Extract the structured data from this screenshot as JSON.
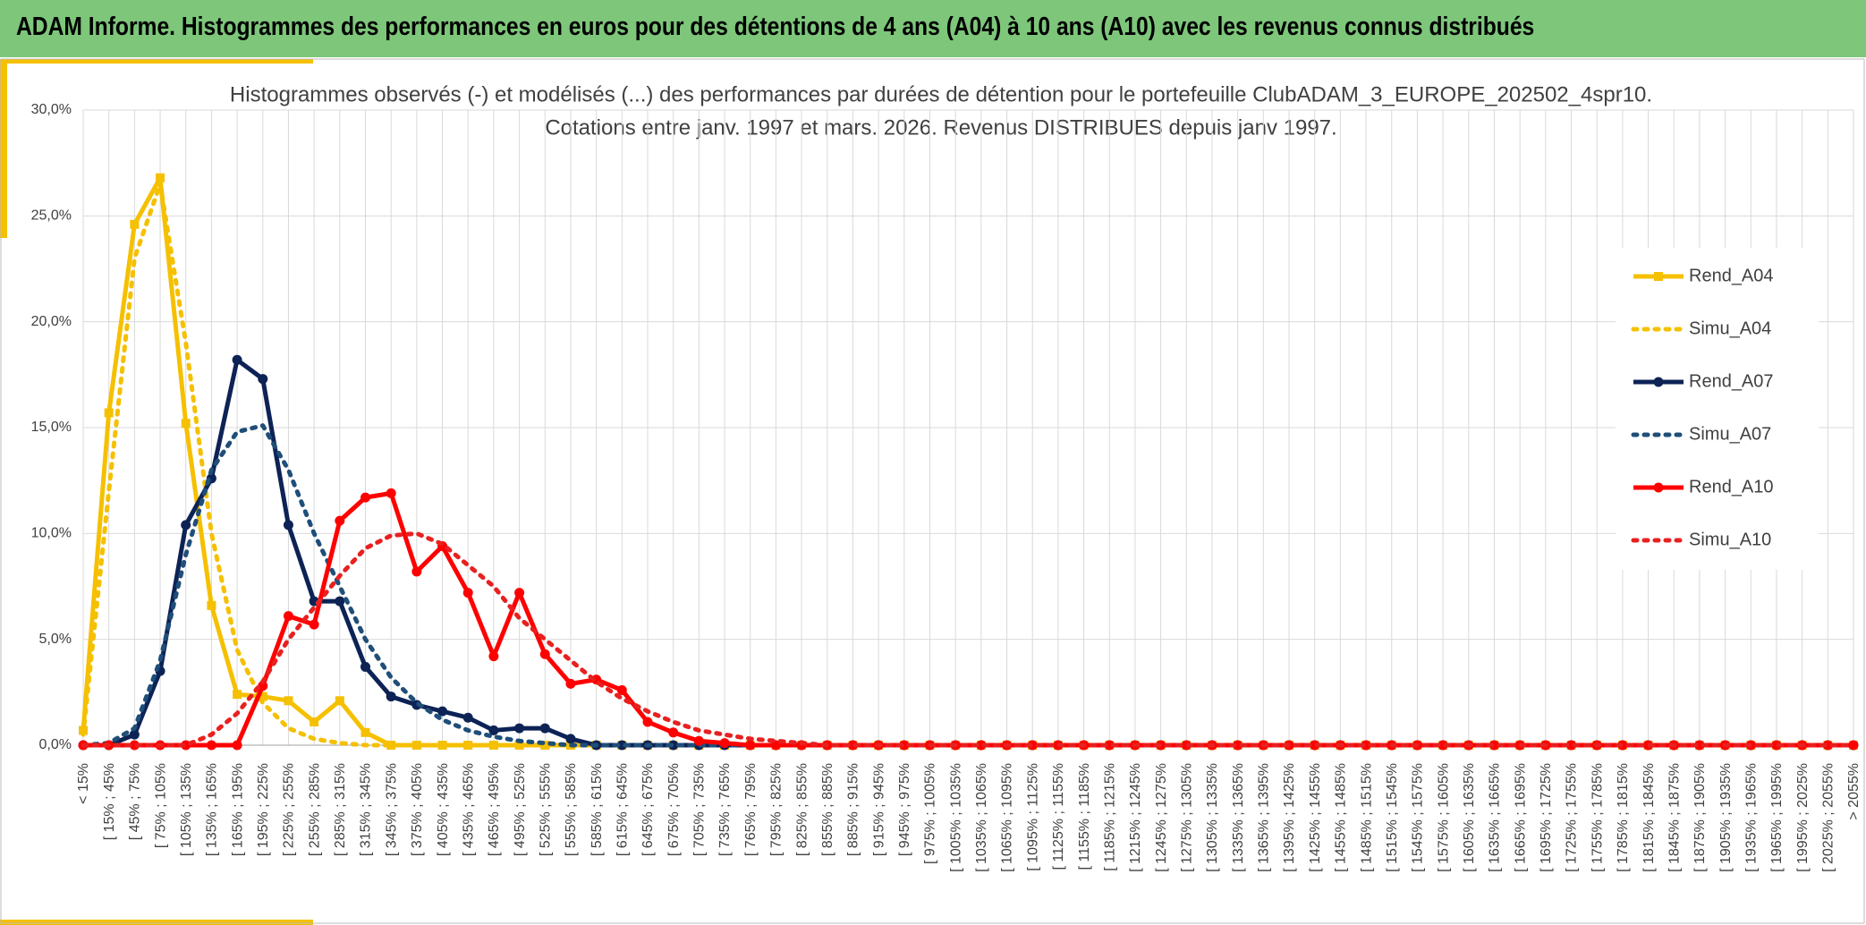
{
  "header": {
    "title": "ADAM Informe. Histogrammes des performances en euros pour des détentions de 4 ans (A04) à 10 ans (A10) avec les revenus connus distribués"
  },
  "chart_data": {
    "type": "line",
    "title": "Histogrammes observés (-) et modélisés (...) des performances par durées de détention pour le portefeuille ClubADAM_3_EUROPE_202502_4spr10.",
    "subtitle": "Cotations entre janv. 1997 et mars. 2026. Revenus DISTRIBUES depuis janv 1997.",
    "categories": [
      "< 15%",
      "[ 15% ; 45%",
      "[ 45% ; 75%",
      "[ 75% ; 105%",
      "[ 105% ; 135%",
      "[ 135% ; 165%",
      "[ 165% ; 195%",
      "[ 195% ; 225%",
      "[ 225% ; 255%",
      "[ 255% ; 285%",
      "[ 285% ; 315%",
      "[ 315% ; 345%",
      "[ 345% ; 375%",
      "[ 375% ; 405%",
      "[ 405% ; 435%",
      "[ 435% ; 465%",
      "[ 465% ; 495%",
      "[ 495% ; 525%",
      "[ 525% ; 555%",
      "[ 555% ; 585%",
      "[ 585% ; 615%",
      "[ 615% ; 645%",
      "[ 645% ; 675%",
      "[ 675% ; 705%",
      "[ 705% ; 735%",
      "[ 735% ; 765%",
      "[ 765% ; 795%",
      "[ 795% ; 825%",
      "[ 825% ; 855%",
      "[ 855% ; 885%",
      "[ 885% ; 915%",
      "[ 915% ; 945%",
      "[ 945% ; 975%",
      "[ 975% ; 1005%",
      "[ 1005% ; 1035%",
      "[ 1035% ; 1065%",
      "[ 1065% ; 1095%",
      "[ 1095% ; 1125%",
      "[ 1125% ; 1155%",
      "[ 1155% ; 1185%",
      "[ 1185% ; 1215%",
      "[ 1215% ; 1245%",
      "[ 1245% ; 1275%",
      "[ 1275% ; 1305%",
      "[ 1305% ; 1335%",
      "[ 1335% ; 1365%",
      "[ 1365% ; 1395%",
      "[ 1395% ; 1425%",
      "[ 1425% ; 1455%",
      "[ 1455% ; 1485%",
      "[ 1485% ; 1515%",
      "[ 1515% ; 1545%",
      "[ 1545% ; 1575%",
      "[ 1575% ; 1605%",
      "[ 1605% ; 1635%",
      "[ 1635% ; 1665%",
      "[ 1665% ; 1695%",
      "[ 1695% ; 1725%",
      "[ 1725% ; 1755%",
      "[ 1755% ; 1785%",
      "[ 1785% ; 1815%",
      "[ 1815% ; 1845%",
      "[ 1845% ; 1875%",
      "[ 1875% ; 1905%",
      "[ 1905% ; 1935%",
      "[ 1935% ; 1965%",
      "[ 1965% ; 1995%",
      "[ 1995% ; 2025%",
      "[ 2025% ; 2055%",
      "> 2055%"
    ],
    "series": [
      {
        "name": "Rend_A04",
        "color": "#f5c000",
        "dashed": false,
        "marker": "square",
        "values": [
          0.7,
          15.7,
          24.6,
          26.8,
          15.2,
          6.6,
          2.4,
          2.3,
          2.1,
          1.1,
          2.1,
          0.6,
          0,
          0,
          0,
          0,
          0,
          0,
          0,
          0,
          0,
          0,
          0,
          0,
          0,
          0,
          0,
          0,
          0,
          0,
          0,
          0,
          0,
          0,
          0,
          0,
          0,
          0,
          0,
          0,
          0,
          0,
          0,
          0,
          0,
          0,
          0,
          0,
          0,
          0,
          0,
          0,
          0,
          0,
          0,
          0,
          0,
          0,
          0,
          0,
          0,
          0,
          0,
          0,
          0,
          0,
          0,
          0,
          0,
          0
        ]
      },
      {
        "name": "Simu_A04",
        "color": "#f5c000",
        "dashed": true,
        "marker": null,
        "values": [
          0.5,
          12,
          23,
          26.5,
          19,
          10,
          4.5,
          2,
          0.8,
          0.3,
          0.1,
          0,
          0,
          0,
          0,
          0,
          0,
          0,
          0,
          0,
          0,
          0,
          0,
          0,
          0,
          0,
          0,
          0,
          0,
          0,
          0,
          0,
          0,
          0,
          0,
          0,
          0,
          0,
          0,
          0,
          0,
          0,
          0,
          0,
          0,
          0,
          0,
          0,
          0,
          0,
          0,
          0,
          0,
          0,
          0,
          0,
          0,
          0,
          0,
          0,
          0,
          0,
          0,
          0,
          0,
          0,
          0,
          0,
          0,
          0
        ]
      },
      {
        "name": "Rend_A07",
        "color": "#0d2356",
        "dashed": false,
        "marker": "circle",
        "values": [
          0,
          0,
          0.5,
          3.5,
          10.4,
          12.6,
          18.2,
          17.3,
          10.4,
          6.8,
          6.8,
          3.7,
          2.3,
          1.9,
          1.6,
          1.3,
          0.7,
          0.8,
          0.8,
          0.3,
          0,
          0,
          0,
          0,
          0,
          0,
          0,
          0,
          0,
          0,
          0,
          0,
          0,
          0,
          0,
          0,
          0,
          0,
          0,
          0,
          0,
          0,
          0,
          0,
          0,
          0,
          0,
          0,
          0,
          0,
          0,
          0,
          0,
          0,
          0,
          0,
          0,
          0,
          0,
          0,
          0,
          0,
          0,
          0,
          0,
          0,
          0,
          0,
          0,
          0
        ]
      },
      {
        "name": "Simu_A07",
        "color": "#1f4e79",
        "dashed": true,
        "marker": null,
        "values": [
          0,
          0.1,
          0.8,
          4,
          9,
          13,
          14.8,
          15.1,
          13,
          10,
          7.5,
          5,
          3.2,
          2,
          1.2,
          0.7,
          0.4,
          0.2,
          0.1,
          0,
          0,
          0,
          0,
          0,
          0,
          0,
          0,
          0,
          0,
          0,
          0,
          0,
          0,
          0,
          0,
          0,
          0,
          0,
          0,
          0,
          0,
          0,
          0,
          0,
          0,
          0,
          0,
          0,
          0,
          0,
          0,
          0,
          0,
          0,
          0,
          0,
          0,
          0,
          0,
          0,
          0,
          0,
          0,
          0,
          0,
          0,
          0,
          0,
          0,
          0
        ]
      },
      {
        "name": "Rend_A10",
        "color": "#ff0000",
        "dashed": false,
        "marker": "circle",
        "values": [
          0,
          0,
          0,
          0,
          0,
          0,
          0,
          2.8,
          6.1,
          5.7,
          10.6,
          11.7,
          11.9,
          8.2,
          9.4,
          7.2,
          4.2,
          7.2,
          4.3,
          2.9,
          3.1,
          2.6,
          1.1,
          0.6,
          0.2,
          0.1,
          0,
          0,
          0,
          0,
          0,
          0,
          0,
          0,
          0,
          0,
          0,
          0,
          0,
          0,
          0,
          0,
          0,
          0,
          0,
          0,
          0,
          0,
          0,
          0,
          0,
          0,
          0,
          0,
          0,
          0,
          0,
          0,
          0,
          0,
          0,
          0,
          0,
          0,
          0,
          0,
          0,
          0,
          0,
          0
        ]
      },
      {
        "name": "Simu_A10",
        "color": "#e82020",
        "dashed": true,
        "marker": null,
        "values": [
          0,
          0,
          0,
          0,
          0,
          0.5,
          1.5,
          3,
          5,
          6.5,
          8,
          9.3,
          9.9,
          10,
          9.5,
          8.5,
          7.5,
          6,
          5,
          4,
          3,
          2.2,
          1.6,
          1.1,
          0.7,
          0.5,
          0.3,
          0.2,
          0.1,
          0,
          0,
          0,
          0,
          0,
          0,
          0,
          0,
          0,
          0,
          0,
          0,
          0,
          0,
          0,
          0,
          0,
          0,
          0,
          0,
          0,
          0,
          0,
          0,
          0,
          0,
          0,
          0,
          0,
          0,
          0,
          0,
          0,
          0,
          0,
          0,
          0,
          0,
          0,
          0,
          0
        ]
      }
    ],
    "ylim": [
      0,
      30
    ],
    "yticks": [
      {
        "value": 0,
        "label": "0,0%"
      },
      {
        "value": 5,
        "label": "5,0%"
      },
      {
        "value": 10,
        "label": "10,0%"
      },
      {
        "value": 15,
        "label": "15,0%"
      },
      {
        "value": 20,
        "label": "20,0%"
      },
      {
        "value": 25,
        "label": "25,0%"
      },
      {
        "value": 30,
        "label": "30,0%"
      }
    ],
    "grid": true,
    "legend": "right"
  }
}
